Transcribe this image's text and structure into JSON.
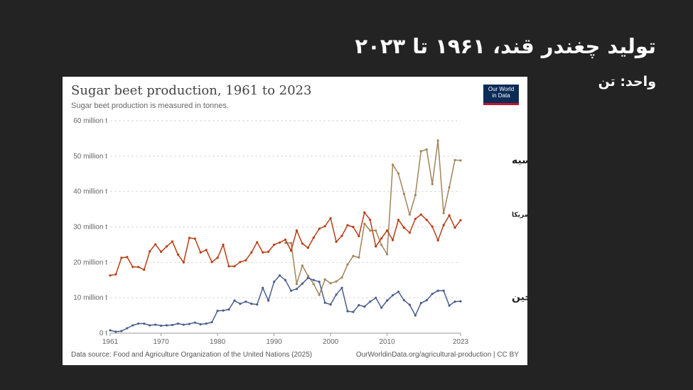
{
  "slide": {
    "title": "تولید چغندر قند، ۱۹۶۱ تا ۲۰۲۳",
    "unit": "واحد: تن"
  },
  "logo": {
    "line1": "Our World",
    "line2": "in Data"
  },
  "footer": {
    "source": "Data source: Food and Agriculture Organization of the United Nations (2025)",
    "credit": "OurWorldinData.org/agricultural-production | CC BY"
  },
  "colors": {
    "russia": "#a2855a",
    "usa": "#b83e16",
    "china": "#4a5e8d",
    "grid": "#d9d9d9"
  },
  "chart_data": {
    "type": "line",
    "title": "Sugar beet production, 1961 to 2023",
    "subtitle": "Sugar beet production is measured in tonnes.",
    "ylim": [
      0,
      60000000
    ],
    "yticks": [
      0,
      10000000,
      20000000,
      30000000,
      40000000,
      50000000,
      60000000
    ],
    "yticklabels": [
      "0 t",
      "10 million t",
      "20 million t",
      "30 million t",
      "40 million t",
      "50 million t",
      "60 million t"
    ],
    "xlim": [
      1961,
      2023
    ],
    "xticks": [
      1961,
      1970,
      1980,
      1990,
      2000,
      2010,
      2023
    ],
    "xticklabels": [
      "1961",
      "1970",
      "1980",
      "1990",
      "2000",
      "2010",
      "2023"
    ],
    "grid": true,
    "series": [
      {
        "name": "روسیه",
        "color": "#a2855a",
        "x": [
          1992,
          1993,
          1994,
          1995,
          1996,
          1997,
          1998,
          1999,
          2000,
          2001,
          2002,
          2003,
          2004,
          2005,
          2006,
          2007,
          2008,
          2009,
          2010,
          2011,
          2012,
          2013,
          2014,
          2015,
          2016,
          2017,
          2018,
          2019,
          2020,
          2021,
          2022,
          2023
        ],
        "values": [
          25500000,
          25500000,
          13900000,
          19100000,
          16200000,
          13900000,
          10800000,
          15200000,
          14100000,
          14600000,
          15700000,
          19400000,
          21800000,
          21400000,
          30900000,
          29000000,
          29000000,
          24900000,
          22300000,
          47600000,
          45100000,
          39300000,
          33500000,
          39000000,
          51400000,
          51900000,
          42100000,
          54400000,
          33900000,
          41200000,
          48900000,
          48800000
        ]
      },
      {
        "name": "ایالات متحده آمریکا",
        "color": "#b83e16",
        "x": [
          1961,
          1962,
          1963,
          1964,
          1965,
          1966,
          1967,
          1968,
          1969,
          1970,
          1971,
          1972,
          1973,
          1974,
          1975,
          1976,
          1977,
          1978,
          1979,
          1980,
          1981,
          1982,
          1983,
          1984,
          1985,
          1986,
          1987,
          1988,
          1989,
          1990,
          1991,
          1992,
          1993,
          1994,
          1995,
          1996,
          1997,
          1998,
          1999,
          2000,
          2001,
          2002,
          2003,
          2004,
          2005,
          2006,
          2007,
          2008,
          2009,
          2010,
          2011,
          2012,
          2013,
          2014,
          2015,
          2016,
          2017,
          2018,
          2019,
          2020,
          2021,
          2022,
          2023
        ],
        "values": [
          16300000,
          16600000,
          21300000,
          21500000,
          18700000,
          18700000,
          17900000,
          23100000,
          25100000,
          23000000,
          24500000,
          25900000,
          22200000,
          20000000,
          26900000,
          26700000,
          22800000,
          23500000,
          20100000,
          21300000,
          25000000,
          18900000,
          18900000,
          20100000,
          20600000,
          22800000,
          25700000,
          22800000,
          23000000,
          25000000,
          25600000,
          26400000,
          23300000,
          29000000,
          25300000,
          24100000,
          27000000,
          29500000,
          30200000,
          32500000,
          25800000,
          27500000,
          30500000,
          30000000,
          27400000,
          34100000,
          32000000,
          24500000,
          26800000,
          29000000,
          26300000,
          32000000,
          29800000,
          28400000,
          32300000,
          33500000,
          32000000,
          30100000,
          26200000,
          30500000,
          33300000,
          29800000,
          31900000
        ]
      },
      {
        "name": "چین",
        "color": "#4a5e8d",
        "x": [
          1961,
          1962,
          1963,
          1964,
          1965,
          1966,
          1967,
          1968,
          1969,
          1970,
          1971,
          1972,
          1973,
          1974,
          1975,
          1976,
          1977,
          1978,
          1979,
          1980,
          1981,
          1982,
          1983,
          1984,
          1985,
          1986,
          1987,
          1988,
          1989,
          1990,
          1991,
          1992,
          1993,
          1994,
          1995,
          1996,
          1997,
          1998,
          1999,
          2000,
          2001,
          2002,
          2003,
          2004,
          2005,
          2006,
          2007,
          2008,
          2009,
          2010,
          2011,
          2012,
          2013,
          2014,
          2015,
          2016,
          2017,
          2018,
          2019,
          2020,
          2021,
          2022,
          2023
        ],
        "values": [
          800000,
          400000,
          600000,
          1400000,
          2200000,
          2700000,
          2700000,
          2200000,
          2400000,
          2100000,
          2200000,
          2300000,
          2700000,
          2400000,
          2600000,
          3000000,
          2500000,
          2700000,
          3100000,
          6300000,
          6400000,
          6700000,
          9200000,
          8300000,
          8900000,
          8300000,
          8100000,
          12800000,
          9200000,
          14500000,
          16300000,
          15000000,
          12000000,
          12500000,
          14000000,
          15600000,
          15000000,
          14500000,
          8600000,
          8100000,
          10900000,
          12800000,
          6200000,
          6000000,
          7900000,
          7500000,
          8900000,
          10000000,
          7200000,
          9200000,
          10700000,
          11700000,
          9300000,
          8000000,
          5000000,
          8500000,
          9300000,
          11100000,
          12000000,
          12000000,
          7800000,
          8900000,
          9000000
        ]
      }
    ]
  }
}
